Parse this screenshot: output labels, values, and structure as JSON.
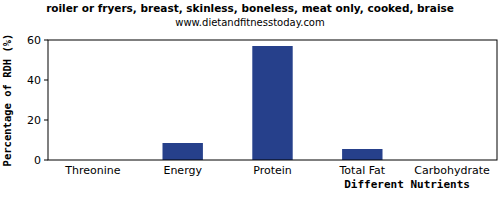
{
  "chart_data": {
    "type": "bar",
    "title": "roiler or fryers, breast, skinless, boneless, meat only, cooked, braise",
    "subtitle": "www.dietandfitnesstoday.com",
    "x_label": "Different Nutrients",
    "y_label": "Percentage of RDH (%)",
    "categories": [
      "Threonine",
      "Energy",
      "Protein",
      "Total Fat",
      "Carbohydrate"
    ],
    "values": [
      0,
      8.5,
      57,
      5.5,
      0
    ],
    "color": "#26408b",
    "ylim": [
      0,
      60
    ],
    "yticks": [
      0,
      20,
      40,
      60
    ],
    "grid": false
  }
}
